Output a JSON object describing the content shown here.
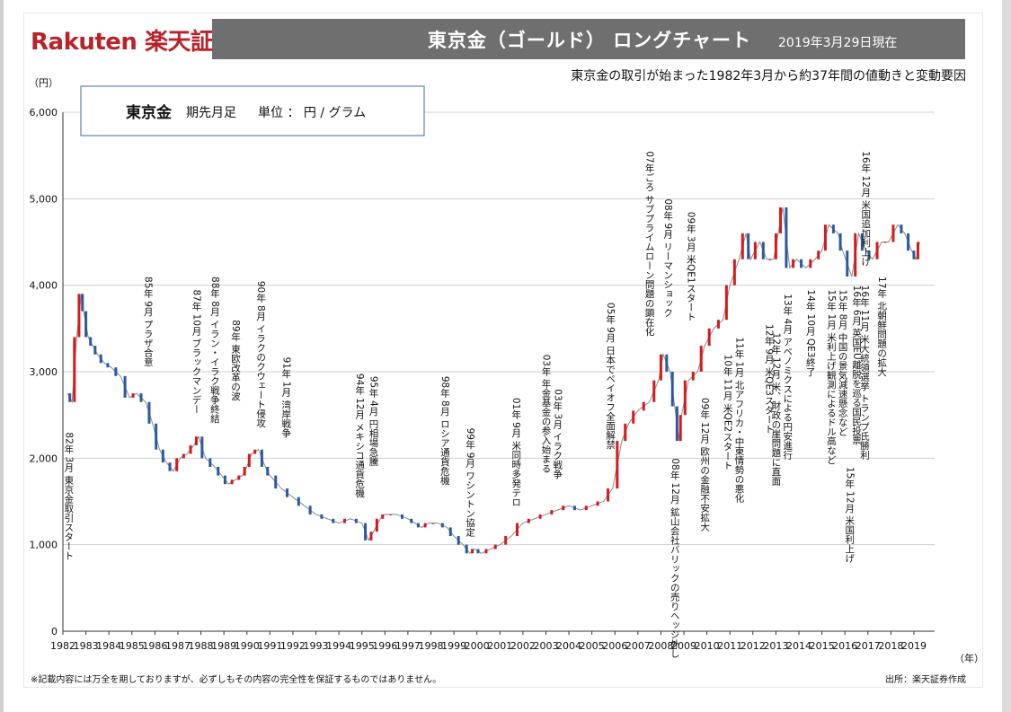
{
  "header": {
    "logo": "Rakuten 楽天証券",
    "title": "東京金（ゴールド） ロングチャート",
    "date": "2019年3月29日現在"
  },
  "subtitle": "東京金の取引が始まった1982年3月から約37年間の値動きと変動要因",
  "footer": {
    "disclaimer": "※記載内容には万全を期しておりますが、必ずしもその内容の完全性を保証するものではありません。",
    "source": "出所：楽天証券作成"
  },
  "colors": {
    "brand": "#b8232b",
    "up": "#d7191c",
    "down": "#2c5aa0",
    "header_bg": "#6f6f6f"
  },
  "chart_data": {
    "type": "line",
    "legend_box": {
      "name": "東京金",
      "detail": "期先月足",
      "unit": "単位 ： 円 / グラム"
    },
    "ylabel": "（円）",
    "xlabel": "（年）",
    "ylim": [
      0,
      6000
    ],
    "xlim": [
      1982,
      2019.9
    ],
    "y_ticks": [
      "0",
      "1,000",
      "2,000",
      "3,000",
      "4,000",
      "5,000",
      "6,000"
    ],
    "y_tick_values": [
      0,
      1000,
      2000,
      3000,
      4000,
      5000,
      6000
    ],
    "x_ticks": [
      "1982",
      "1983",
      "1984",
      "1985",
      "1986",
      "1987",
      "1988",
      "1989",
      "1990",
      "1991",
      "1992",
      "1993",
      "1994",
      "1995",
      "1996",
      "1997",
      "1998",
      "1999",
      "2000",
      "2001",
      "2002",
      "2003",
      "2004",
      "2005",
      "2006",
      "2007",
      "2008",
      "2009",
      "2010",
      "2011",
      "2012",
      "2013",
      "2014",
      "2015",
      "2016",
      "2017",
      "2018",
      "2019"
    ],
    "series": [
      {
        "x": [
          1982.2,
          1982.4,
          1982.6,
          1982.8,
          1982.9,
          1983.1,
          1983.3,
          1983.5,
          1983.8,
          1984.1,
          1984.5,
          1984.9,
          1985.2,
          1985.6,
          1985.9,
          1986.2,
          1986.5,
          1986.8,
          1987.1,
          1987.4,
          1987.7,
          1987.9,
          1988.2,
          1988.6,
          1988.9,
          1989.2,
          1989.5,
          1989.8,
          1990.0,
          1990.2,
          1990.5,
          1990.8,
          1991.0,
          1991.5,
          1992.0,
          1992.5,
          1993.0,
          1993.5,
          1994.0,
          1994.5,
          1995.0,
          1995.3,
          1995.5,
          1995.8,
          1996.0,
          1996.5,
          1997.0,
          1997.3,
          1997.6,
          1997.9,
          1998.3,
          1998.7,
          1999.0,
          1999.4,
          1999.7,
          1999.9,
          2000.2,
          2000.6,
          2001.0,
          2001.5,
          2002.0,
          2002.5,
          2003.0,
          2003.5,
          2004.0,
          2004.5,
          2005.0,
          2005.5,
          2005.9,
          2006.3,
          2006.6,
          2007.0,
          2007.5,
          2007.9,
          2008.1,
          2008.4,
          2008.6,
          2008.8,
          2008.9,
          2009.2,
          2009.6,
          2009.9,
          2010.3,
          2010.7,
          2011.0,
          2011.4,
          2011.7,
          2011.9,
          2012.3,
          2012.6,
          2012.9,
          2013.1,
          2013.3,
          2013.6,
          2013.9,
          2014.3,
          2014.7,
          2015.0,
          2015.3,
          2015.7,
          2015.9,
          2016.3,
          2016.6,
          2016.9,
          2017.2,
          2017.6,
          2017.9,
          2018.3,
          2018.6,
          2018.9,
          2019.1,
          2019.25
        ],
        "y": [
          2750,
          2650,
          3400,
          3900,
          3700,
          3400,
          3300,
          3200,
          3100,
          3050,
          2950,
          2700,
          2750,
          2650,
          2400,
          2100,
          1950,
          1850,
          2000,
          2050,
          2150,
          2250,
          2000,
          1900,
          1800,
          1700,
          1750,
          1800,
          1900,
          2050,
          2100,
          1900,
          1800,
          1650,
          1550,
          1450,
          1350,
          1300,
          1250,
          1300,
          1250,
          1050,
          1150,
          1300,
          1350,
          1350,
          1300,
          1250,
          1200,
          1250,
          1250,
          1200,
          1100,
          1000,
          900,
          950,
          900,
          950,
          1000,
          1100,
          1250,
          1300,
          1350,
          1400,
          1450,
          1400,
          1450,
          1500,
          1650,
          2200,
          2400,
          2550,
          2650,
          2900,
          3200,
          3000,
          2600,
          2200,
          2500,
          2900,
          3000,
          3300,
          3500,
          3600,
          4000,
          4300,
          4600,
          4300,
          4500,
          4300,
          4300,
          4600,
          4900,
          4200,
          4300,
          4200,
          4300,
          4400,
          4700,
          4600,
          4400,
          4100,
          4600,
          4400,
          4300,
          4500,
          4500,
          4700,
          4600,
          4400,
          4300,
          4500
        ]
      }
    ],
    "annotations": [
      {
        "label": "82年 3月 東京金取引スタート",
        "x": 1982.25,
        "top": 2300
      },
      {
        "label": "85年 9月 プラザ合意",
        "x": 1985.7,
        "top": 4100
      },
      {
        "label": "87年 10月 ブラックマンデー",
        "x": 1987.8,
        "top": 3950
      },
      {
        "label": "88年 8月 イラン・イラク戦争終結",
        "x": 1988.6,
        "top": 4100
      },
      {
        "label": "89年 東欧改革の波",
        "x": 1989.5,
        "top": 3600
      },
      {
        "label": "90年 8月 イラクのクウェート侵攻",
        "x": 1990.6,
        "top": 4050
      },
      {
        "label": "91年 1月 湾岸戦争",
        "x": 1991.7,
        "top": 3170
      },
      {
        "label": "94年 12月 メキシコ通貨危機",
        "x": 1994.9,
        "top": 2980
      },
      {
        "label": "95年 4月 円相場急騰",
        "x": 1995.5,
        "top": 2950
      },
      {
        "label": "98年 8月 ロシア通貨危機",
        "x": 1998.6,
        "top": 2950
      },
      {
        "label": "99年 9月 ワシントン協定",
        "x": 1999.7,
        "top": 2350
      },
      {
        "label": "01年 9月 米同時多発テロ",
        "x": 2001.7,
        "top": 2700
      },
      {
        "label": "03年 年金基金の参入始まる",
        "x": 2003.0,
        "top": 3200
      },
      {
        "label": "03年 3月 イラク戦争",
        "x": 2003.5,
        "top": 2800
      },
      {
        "label": "05年 9月 日本でペイオフ全面解禁",
        "x": 2005.8,
        "top": 3800
      },
      {
        "label": "07年ごろ サブプライムローン問題の顕在化",
        "x": 2007.5,
        "top": 5550
      },
      {
        "label": "08年 9月 リーマンショック",
        "x": 2008.3,
        "top": 5000
      },
      {
        "label": "08年 12月 鉱山会社バリックの売りヘッジ外し",
        "x": 2008.6,
        "top": 2000
      },
      {
        "label": "09年 3月 米QE1スタート",
        "x": 2009.3,
        "top": 4850
      },
      {
        "label": "09年 12月 欧州の金融不安拡大",
        "x": 2009.9,
        "top": 2700
      },
      {
        "label": "10年 11月 米QE2スタート",
        "x": 2010.9,
        "top": 3200
      },
      {
        "label": "11年 1月 北アフリカ・中東情勢の悪化",
        "x": 2011.4,
        "top": 3400
      },
      {
        "label": "12年 9月 米QE3スタート",
        "x": 2012.7,
        "top": 3550
      },
      {
        "label": "12年 12月 米、財政の崖問題に直面",
        "x": 2013.0,
        "top": 3450
      },
      {
        "label": "13年 4月 アベノミクスによる円安進行",
        "x": 2013.5,
        "top": 3900
      },
      {
        "label": "14年 10月 QE3終了",
        "x": 2014.5,
        "top": 3950
      },
      {
        "label": "15年 1月 米利上げ観測によるドル高など",
        "x": 2015.4,
        "top": 3950
      },
      {
        "label": "15年 8月 中国の景気減速懸念など",
        "x": 2015.9,
        "top": 3950
      },
      {
        "label": "15年 12月 米国利上げ",
        "x": 2016.2,
        "top": 1900
      },
      {
        "label": "16年 6月 英国EU離脱を巡る国民投票",
        "x": 2016.5,
        "top": 4000
      },
      {
        "label": "16年 11月 米大統領選挙 トランプ氏勝利",
        "x": 2016.85,
        "top": 4000
      },
      {
        "label": "16年 12月 米国追加利上げ",
        "x": 2016.9,
        "top": 5550
      },
      {
        "label": "17年 北朝鮮問題の拡大",
        "x": 2017.6,
        "top": 4100
      }
    ]
  }
}
